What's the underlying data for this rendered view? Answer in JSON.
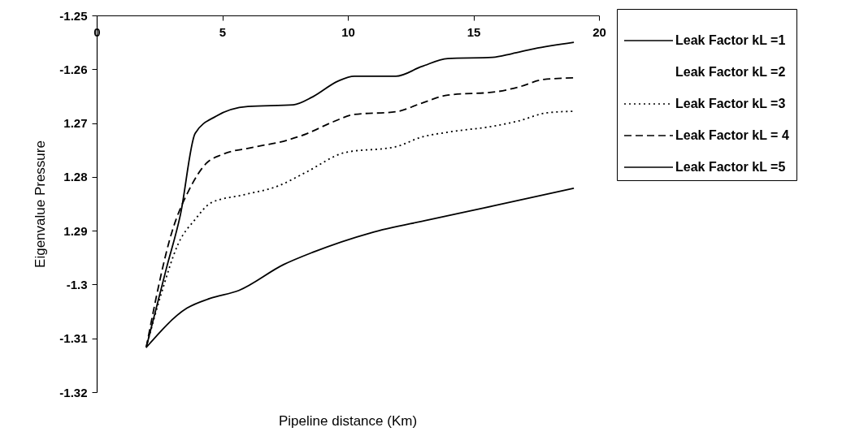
{
  "chart_data": {
    "type": "line",
    "xlabel": "Pipeline distance (Km)",
    "ylabel": "Eigenvalue Pressure",
    "xlim": [
      0,
      20
    ],
    "xticks": [
      0,
      5,
      10,
      15,
      20
    ],
    "ylim": [
      -1.32,
      -1.25
    ],
    "yticks": [
      -1.25,
      -1.26,
      {
        "value": -1.27,
        "label": "1.27"
      },
      {
        "value": -1.28,
        "label": "1.28"
      },
      {
        "value": -1.29,
        "label": "1.29"
      },
      -1.3,
      -1.31,
      -1.32
    ],
    "grid": false,
    "legend": "right",
    "marker": "none",
    "series": [
      {
        "name": "Leak Factor kL =1",
        "color": "#000000",
        "line_style": "solid",
        "x": [
          1.97,
          3.59,
          4.5,
          5.66,
          7.44,
          8.61,
          10.91,
          13.2,
          15.89,
          19.0
        ],
        "values": [
          -1.3117,
          -1.3044,
          -1.3026,
          -1.3011,
          -1.2963,
          -1.294,
          -1.2904,
          -1.288,
          -1.2853,
          -1.2821
        ]
      },
      {
        "name": "Leak Factor kL =2",
        "line_style": "solid"
      },
      {
        "name": "Leak Factor kL =3",
        "color": "#000000",
        "line_style": "dotted",
        "x": [
          1.97,
          2.59,
          3.24,
          3.92,
          4.56,
          5.89,
          7.22,
          8.35,
          9.87,
          11.91,
          12.94,
          13.98,
          15.89,
          16.8,
          17.93,
          19.0
        ],
        "values": [
          -1.3117,
          -1.3014,
          -1.2925,
          -1.2879,
          -1.2848,
          -1.2833,
          -1.2817,
          -1.2791,
          -1.2755,
          -1.2744,
          -1.2726,
          -1.2717,
          -1.2705,
          -1.2696,
          -1.2681,
          -1.2678
        ]
      },
      {
        "name": "Leak Factor kL = 4",
        "color": "#000000",
        "line_style": "dashed",
        "x": [
          1.97,
          3.01,
          3.69,
          4.34,
          5.02,
          6.12,
          7.57,
          8.35,
          9.35,
          10.26,
          11.91,
          12.94,
          13.98,
          15.89,
          16.8,
          17.8,
          19.0
        ],
        "values": [
          -1.3117,
          -1.29,
          -1.2823,
          -1.2776,
          -1.2758,
          -1.2746,
          -1.2732,
          -1.272,
          -1.2699,
          -1.2684,
          -1.2679,
          -1.2663,
          -1.2648,
          -1.2642,
          -1.2633,
          -1.2619,
          -1.2616
        ]
      },
      {
        "name": "Leak Factor kL =5",
        "color": "#000000",
        "line_style": "solid",
        "x": [
          1.97,
          2.78,
          3.33,
          3.92,
          4.76,
          6.02,
          7.83,
          8.61,
          9.61,
          10.26,
          11.91,
          12.94,
          13.98,
          15.76,
          16.54,
          17.41,
          19.0
        ],
        "values": [
          -1.3117,
          -1.2969,
          -1.2871,
          -1.2719,
          -1.2687,
          -1.2669,
          -1.2666,
          -1.2651,
          -1.2622,
          -1.2613,
          -1.2613,
          -1.2595,
          -1.258,
          -1.2578,
          -1.2571,
          -1.2562,
          -1.255
        ]
      }
    ]
  }
}
